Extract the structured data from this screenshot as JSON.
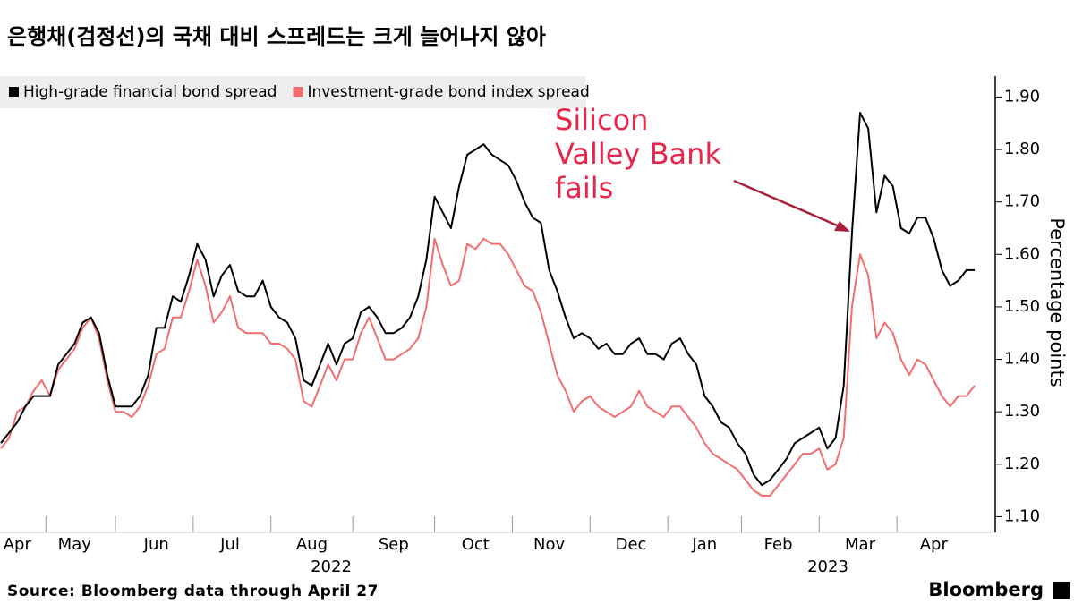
{
  "chart_data": {
    "type": "line",
    "title": "은행채(검정선)의 국채 대비 스프레드는 크게 늘어나지 않아",
    "y_axis_label": "Percentage points",
    "source": "Source: Bloomberg data through April 27",
    "logo": "Bloomberg",
    "annotation": [
      "Silicon",
      "Valley Bank",
      "fails"
    ],
    "x_year_labels": [
      "2022",
      "2023"
    ],
    "categories": [
      null,
      null,
      "Apr",
      null,
      null,
      null,
      null,
      null,
      null,
      "May",
      null,
      null,
      null,
      null,
      null,
      null,
      null,
      null,
      null,
      "Jun",
      null,
      null,
      null,
      null,
      null,
      null,
      null,
      null,
      "Jul",
      null,
      null,
      null,
      null,
      null,
      null,
      null,
      null,
      null,
      "Aug",
      null,
      null,
      null,
      null,
      null,
      null,
      null,
      null,
      null,
      "Sep",
      null,
      null,
      null,
      null,
      null,
      null,
      null,
      null,
      null,
      "Oct",
      null,
      null,
      null,
      null,
      null,
      null,
      null,
      null,
      "Nov",
      null,
      null,
      null,
      null,
      null,
      null,
      null,
      null,
      null,
      "Dec",
      null,
      null,
      null,
      null,
      null,
      null,
      null,
      null,
      "Jan",
      null,
      null,
      null,
      null,
      null,
      null,
      null,
      null,
      "Feb",
      null,
      null,
      null,
      null,
      null,
      null,
      null,
      null,
      null,
      "Mar",
      null,
      null,
      null,
      null,
      null,
      null,
      null,
      null,
      "Apr",
      null,
      null,
      null,
      null,
      null
    ],
    "series": [
      {
        "name": "High-grade financial bond spread",
        "color": "#000000",
        "values": [
          1.24,
          1.26,
          1.28,
          1.31,
          1.33,
          1.33,
          1.33,
          1.39,
          1.41,
          1.43,
          1.47,
          1.48,
          1.45,
          1.37,
          1.31,
          1.31,
          1.31,
          1.33,
          1.37,
          1.46,
          1.46,
          1.52,
          1.51,
          1.56,
          1.62,
          1.59,
          1.52,
          1.56,
          1.58,
          1.53,
          1.52,
          1.52,
          1.55,
          1.5,
          1.48,
          1.47,
          1.44,
          1.36,
          1.35,
          1.39,
          1.43,
          1.39,
          1.43,
          1.44,
          1.49,
          1.5,
          1.48,
          1.45,
          1.45,
          1.46,
          1.48,
          1.52,
          1.59,
          1.71,
          1.68,
          1.65,
          1.73,
          1.79,
          1.8,
          1.81,
          1.79,
          1.78,
          1.77,
          1.74,
          1.7,
          1.67,
          1.66,
          1.57,
          1.53,
          1.48,
          1.44,
          1.45,
          1.44,
          1.42,
          1.43,
          1.41,
          1.41,
          1.43,
          1.44,
          1.41,
          1.41,
          1.4,
          1.43,
          1.44,
          1.41,
          1.39,
          1.33,
          1.31,
          1.28,
          1.27,
          1.24,
          1.22,
          1.18,
          1.16,
          1.17,
          1.19,
          1.21,
          1.24,
          1.25,
          1.26,
          1.27,
          1.23,
          1.25,
          1.35,
          1.64,
          1.87,
          1.84,
          1.68,
          1.75,
          1.73,
          1.65,
          1.64,
          1.67,
          1.67,
          1.63,
          1.57,
          1.54,
          1.55,
          1.57,
          1.57
        ]
      },
      {
        "name": "Investment-grade bond index spread",
        "color": "#f26d6d",
        "values": [
          1.23,
          1.25,
          1.3,
          1.31,
          1.34,
          1.36,
          1.33,
          1.38,
          1.4,
          1.42,
          1.46,
          1.48,
          1.44,
          1.36,
          1.3,
          1.3,
          1.29,
          1.31,
          1.35,
          1.41,
          1.42,
          1.48,
          1.48,
          1.53,
          1.59,
          1.54,
          1.47,
          1.49,
          1.52,
          1.46,
          1.45,
          1.45,
          1.45,
          1.43,
          1.43,
          1.42,
          1.4,
          1.32,
          1.31,
          1.35,
          1.39,
          1.36,
          1.4,
          1.4,
          1.45,
          1.48,
          1.44,
          1.4,
          1.4,
          1.41,
          1.42,
          1.44,
          1.5,
          1.63,
          1.58,
          1.54,
          1.55,
          1.62,
          1.61,
          1.63,
          1.62,
          1.62,
          1.6,
          1.57,
          1.54,
          1.53,
          1.49,
          1.43,
          1.37,
          1.34,
          1.3,
          1.32,
          1.33,
          1.31,
          1.3,
          1.29,
          1.3,
          1.31,
          1.34,
          1.31,
          1.3,
          1.29,
          1.31,
          1.31,
          1.29,
          1.27,
          1.24,
          1.22,
          1.21,
          1.2,
          1.19,
          1.17,
          1.15,
          1.14,
          1.14,
          1.16,
          1.18,
          1.2,
          1.22,
          1.22,
          1.23,
          1.19,
          1.2,
          1.25,
          1.5,
          1.6,
          1.56,
          1.44,
          1.47,
          1.45,
          1.4,
          1.37,
          1.4,
          1.39,
          1.36,
          1.33,
          1.31,
          1.33,
          1.33,
          1.35
        ]
      }
    ],
    "ylim": [
      1.07,
      1.94
    ],
    "yticks": [
      {
        "value": 1.1,
        "label": "1.10"
      },
      {
        "value": 1.2,
        "label": "1.20"
      },
      {
        "value": 1.3,
        "label": "1.30"
      },
      {
        "value": 1.4,
        "label": "1.40"
      },
      {
        "value": 1.5,
        "label": "1.50"
      },
      {
        "value": 1.6,
        "label": "1.60"
      },
      {
        "value": 1.7,
        "label": "1.70"
      },
      {
        "value": 1.8,
        "label": "1.80"
      },
      {
        "value": 1.9,
        "label": "1.90"
      }
    ],
    "grid": false
  }
}
